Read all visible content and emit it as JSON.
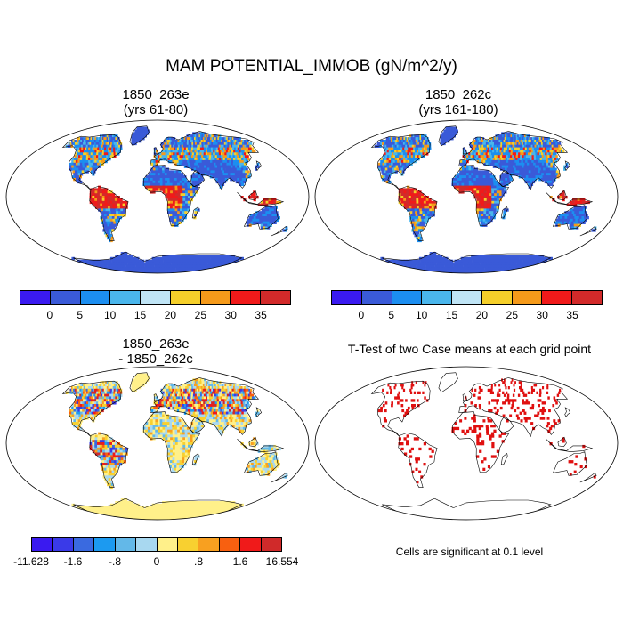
{
  "title": "MAM POTENTIAL_IMMOB (gN/m^2/y)",
  "panels": [
    {
      "title_line1": "1850_263e",
      "title_line2": "(yrs 61-80)"
    },
    {
      "title_line1": "1850_262c",
      "title_line2": "(yrs 161-180)"
    },
    {
      "title_line1": "1850_263e",
      "title_line2": "- 1850_262c"
    },
    {
      "title_line1": "T-Test of two Case means at each grid point"
    }
  ],
  "abs_colorbar": {
    "labels": [
      "0",
      "5",
      "10",
      "15",
      "20",
      "25",
      "30",
      "35"
    ],
    "colors": [
      "#3a1af0",
      "#3a5ad8",
      "#1c8ef0",
      "#4ab6ec",
      "#bfe4f5",
      "#f5cf2a",
      "#f59a1a",
      "#f01a1a",
      "#d22a2a"
    ]
  },
  "diff_colorbar": {
    "labels": [
      "-11.628",
      "-1.6",
      "-.8",
      "0",
      ".8",
      "1.6",
      "16.554"
    ],
    "colors": [
      "#3a1af0",
      "#3a3ae8",
      "#3a6ae0",
      "#1c9af0",
      "#63b8e8",
      "#a8d8f0",
      "#fff08a",
      "#f8d030",
      "#f8a020",
      "#f86010",
      "#f01a1a",
      "#d02a2a"
    ]
  },
  "significance_note": "Cells are significant at 0.1 level",
  "significance_color": "#e01010"
}
